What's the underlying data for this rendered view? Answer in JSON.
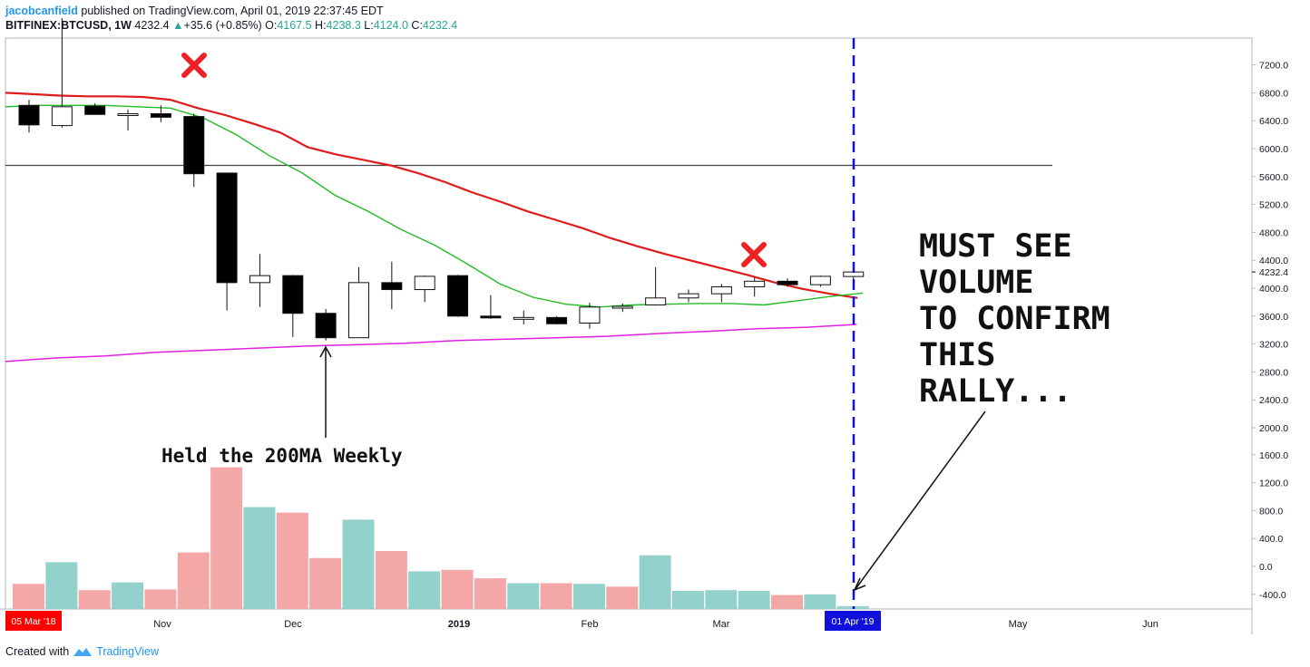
{
  "header": {
    "author": "jacobcanfield",
    "published": " published on TradingView.com, April 01, 2019 22:37:45 EDT",
    "symbol": "BITFINEX:BTCUSD, 1W",
    "last": "4232.4",
    "arrow": "▲",
    "change": "+35.6 (+0.85%)",
    "o_label": "O:",
    "o": "4167.5",
    "h_label": "H:",
    "h": "4238.3",
    "l_label": "L:",
    "l": "4124.0",
    "c_label": "C:",
    "c": "4232.4"
  },
  "footer": {
    "created_with": "Created with",
    "brand": "TradingView"
  },
  "colors": {
    "up": "#26a69a",
    "ma_fast": "#e01b1b",
    "ma_slow": "#22bb22",
    "ma_200": "#e020e0",
    "vol_up": "#93d2cc",
    "vol_down": "#f4a7a7",
    "vline": "#1010dd",
    "hline": "#444444",
    "date_flag_red": "#ff0000",
    "date_flag_blue": "#1010dd",
    "cross": "#ee2222"
  },
  "annotations": {
    "held_text": "Held the 200MA Weekly",
    "volume_text": [
      "MUST SEE",
      "VOLUME",
      " TO CONFIRM",
      "THIS",
      "RALLY..."
    ],
    "cross_icon": "x-mark"
  },
  "chart_data": {
    "type": "candlestick",
    "price_axis_labels": [
      "7200.0",
      "6800.0",
      "6400.0",
      "6000.0",
      "5600.0",
      "5200.0",
      "4800.0",
      "4400.0",
      "4000.0",
      "3600.0",
      "3200.0",
      "2800.0",
      "2400.0",
      "2000.0",
      "1600.0",
      "1200.0",
      "800.0",
      "400.0",
      "0.0",
      "-400.0"
    ],
    "current_price_label": "4232.4",
    "time_axis_labels": [
      "Nov",
      "Dec",
      "2019",
      "Feb",
      "Mar",
      "May",
      "Jun"
    ],
    "start_date_flag": "05 Mar '18",
    "end_date_flag": "01 Apr '19",
    "horizontal_level": 5760,
    "candles": [
      {
        "o": 6620,
        "h": 6700,
        "l": 6230,
        "c": 6340
      },
      {
        "o": 6330,
        "h": 7870,
        "l": 6300,
        "c": 6600
      },
      {
        "o": 6610,
        "h": 6650,
        "l": 6490,
        "c": 6490
      },
      {
        "o": 6500,
        "h": 6560,
        "l": 6260,
        "c": 6500
      },
      {
        "o": 6500,
        "h": 6620,
        "l": 6380,
        "c": 6450
      },
      {
        "o": 6460,
        "h": 6500,
        "l": 5450,
        "c": 5640
      },
      {
        "o": 5650,
        "h": 5650,
        "l": 3680,
        "c": 4080
      },
      {
        "o": 4080,
        "h": 4490,
        "l": 3730,
        "c": 4180
      },
      {
        "o": 4180,
        "h": 4190,
        "l": 3300,
        "c": 3640
      },
      {
        "o": 3640,
        "h": 3700,
        "l": 3250,
        "c": 3290
      },
      {
        "o": 3290,
        "h": 4300,
        "l": 3290,
        "c": 4080
      },
      {
        "o": 4080,
        "h": 4380,
        "l": 3700,
        "c": 3980
      },
      {
        "o": 3980,
        "h": 4180,
        "l": 3800,
        "c": 4170
      },
      {
        "o": 4180,
        "h": 4190,
        "l": 3590,
        "c": 3600
      },
      {
        "o": 3600,
        "h": 3900,
        "l": 3560,
        "c": 3580
      },
      {
        "o": 3580,
        "h": 3680,
        "l": 3480,
        "c": 3580
      },
      {
        "o": 3580,
        "h": 3600,
        "l": 3480,
        "c": 3490
      },
      {
        "o": 3500,
        "h": 3790,
        "l": 3420,
        "c": 3730
      },
      {
        "o": 3730,
        "h": 3780,
        "l": 3660,
        "c": 3740
      },
      {
        "o": 3760,
        "h": 4300,
        "l": 3750,
        "c": 3860
      },
      {
        "o": 3860,
        "h": 3980,
        "l": 3800,
        "c": 3920
      },
      {
        "o": 3920,
        "h": 4060,
        "l": 3800,
        "c": 4020
      },
      {
        "o": 4020,
        "h": 4150,
        "l": 3880,
        "c": 4100
      },
      {
        "o": 4100,
        "h": 4140,
        "l": 4020,
        "c": 4050
      },
      {
        "o": 4050,
        "h": 4180,
        "l": 4020,
        "c": 4170
      },
      {
        "o": 4167.5,
        "h": 4238.3,
        "l": 4124.0,
        "c": 4232.4
      }
    ],
    "ma_fast": [
      6800,
      6780,
      6760,
      6750,
      6750,
      6740,
      6700,
      6580,
      6480,
      6360,
      6230,
      6020,
      5920,
      5840,
      5760,
      5650,
      5520,
      5370,
      5240,
      5100,
      4980,
      4860,
      4720,
      4600,
      4490,
      4390,
      4290,
      4190,
      4080,
      3990,
      3920,
      3860
    ],
    "ma_slow": [
      6600,
      6620,
      6620,
      6620,
      6600,
      6580,
      6440,
      6200,
      5900,
      5650,
      5330,
      5100,
      4840,
      4620,
      4350,
      4060,
      3870,
      3770,
      3730,
      3760,
      3770,
      3780,
      3780,
      3760,
      3820,
      3880,
      3930
    ],
    "ma_200": [
      2950,
      3000,
      3030,
      3080,
      3110,
      3140,
      3170,
      3190,
      3210,
      3250,
      3270,
      3290,
      3310,
      3350,
      3380,
      3420,
      3440,
      3480
    ],
    "volume": [
      {
        "v": -250,
        "dir": "down"
      },
      {
        "v": 60,
        "dir": "up"
      },
      {
        "v": -340,
        "dir": "down"
      },
      {
        "v": -230,
        "dir": "up"
      },
      {
        "v": -330,
        "dir": "down"
      },
      {
        "v": 200,
        "dir": "down"
      },
      {
        "v": 1420,
        "dir": "down"
      },
      {
        "v": 850,
        "dir": "up"
      },
      {
        "v": 770,
        "dir": "down"
      },
      {
        "v": 120,
        "dir": "down"
      },
      {
        "v": 670,
        "dir": "up"
      },
      {
        "v": 220,
        "dir": "down"
      },
      {
        "v": -70,
        "dir": "up"
      },
      {
        "v": -50,
        "dir": "down"
      },
      {
        "v": -170,
        "dir": "down"
      },
      {
        "v": -240,
        "dir": "up"
      },
      {
        "v": -240,
        "dir": "down"
      },
      {
        "v": -250,
        "dir": "up"
      },
      {
        "v": -290,
        "dir": "down"
      },
      {
        "v": 160,
        "dir": "up"
      },
      {
        "v": -350,
        "dir": "up"
      },
      {
        "v": -340,
        "dir": "up"
      },
      {
        "v": -350,
        "dir": "up"
      },
      {
        "v": -410,
        "dir": "down"
      },
      {
        "v": -400,
        "dir": "up"
      },
      {
        "v": -570,
        "dir": "up"
      }
    ]
  }
}
